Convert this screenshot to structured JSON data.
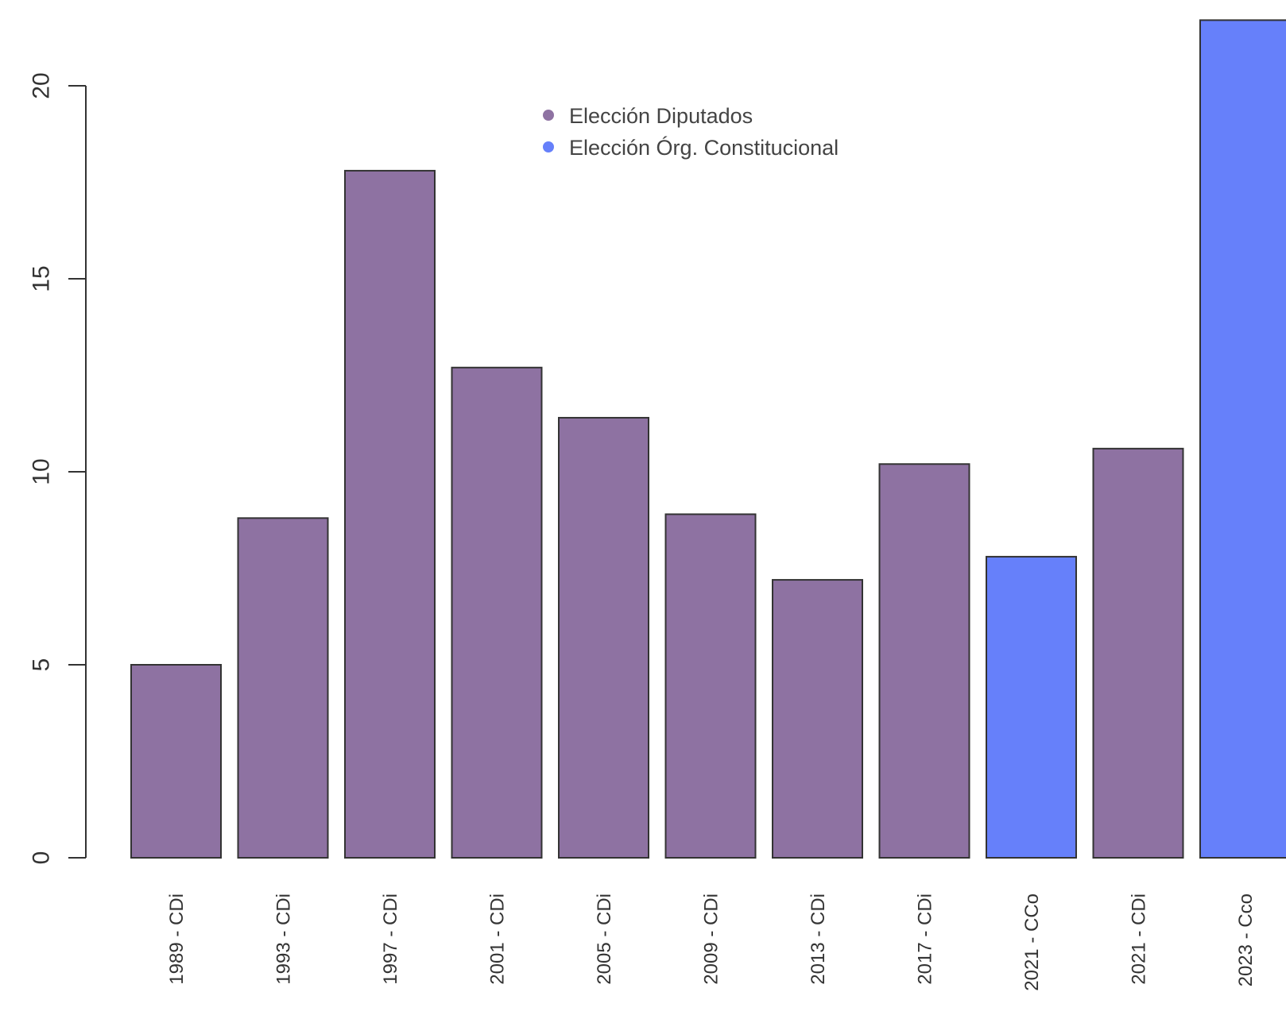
{
  "chart_data": {
    "type": "bar",
    "title": "",
    "xlabel": "",
    "ylabel": "",
    "ylim": [
      0,
      22
    ],
    "yticks": [
      0,
      5,
      10,
      15,
      20
    ],
    "grid": false,
    "legend_position": "top-center",
    "categories": [
      "1989 - CDi",
      "1993 - CDi",
      "1997 - CDi",
      "2001 - CDi",
      "2005 - CDi",
      "2009 - CDi",
      "2013 - CDi",
      "2017 - CDi",
      "2021 - CCo",
      "2021 - CDi",
      "2023 - Cco"
    ],
    "values": [
      5.0,
      8.8,
      17.8,
      12.7,
      11.4,
      8.9,
      7.2,
      10.2,
      7.8,
      10.6,
      21.7
    ],
    "groups": [
      "Elección Diputados",
      "Elección Diputados",
      "Elección Diputados",
      "Elección Diputados",
      "Elección Diputados",
      "Elección Diputados",
      "Elección Diputados",
      "Elección Diputados",
      "Elección Órg. Constitucional",
      "Elección Diputados",
      "Elección Órg. Constitucional"
    ],
    "legend": [
      {
        "label": "Elección Diputados",
        "color": "#8e72a2"
      },
      {
        "label": "Elección Órg. Constitucional",
        "color": "#6680fa"
      }
    ]
  }
}
